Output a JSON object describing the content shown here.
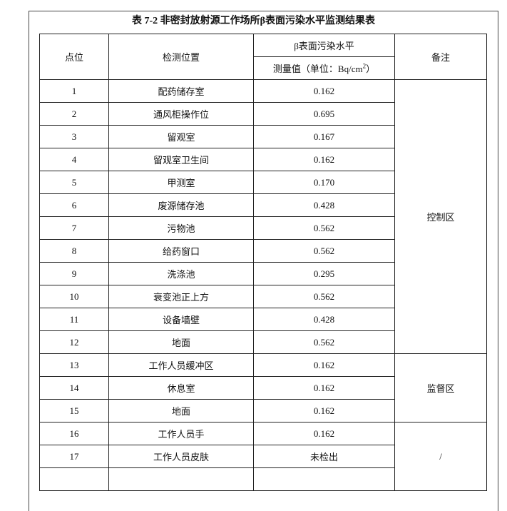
{
  "title": "表 7-2 非密封放射源工作场所β表面污染水平监测结果表",
  "headers": {
    "point": "点位",
    "location": "检测位置",
    "level": "β表面污染水平",
    "measured": "测量值（单位：Bq/cm",
    "measured_sup": "2",
    "measured_end": "）",
    "remark": "备注"
  },
  "rows": [
    {
      "no": "1",
      "location": "配药储存室",
      "value": "0.162"
    },
    {
      "no": "2",
      "location": "通风柜操作位",
      "value": "0.695"
    },
    {
      "no": "3",
      "location": "留观室",
      "value": "0.167"
    },
    {
      "no": "4",
      "location": "留观室卫生间",
      "value": "0.162"
    },
    {
      "no": "5",
      "location": "甲测室",
      "value": "0.170"
    },
    {
      "no": "6",
      "location": "废源储存池",
      "value": "0.428"
    },
    {
      "no": "7",
      "location": "污物池",
      "value": "0.562"
    },
    {
      "no": "8",
      "location": "给药窗口",
      "value": "0.562"
    },
    {
      "no": "9",
      "location": "洗涤池",
      "value": "0.295"
    },
    {
      "no": "10",
      "location": "衰变池正上方",
      "value": "0.562"
    },
    {
      "no": "11",
      "location": "设备墙壁",
      "value": "0.428"
    },
    {
      "no": "12",
      "location": "地面",
      "value": "0.562"
    },
    {
      "no": "13",
      "location": "工作人员缓冲区",
      "value": "0.162"
    },
    {
      "no": "14",
      "location": "休息室",
      "value": "0.162"
    },
    {
      "no": "15",
      "location": "地面",
      "value": "0.162"
    },
    {
      "no": "16",
      "location": "工作人员手",
      "value": "0.162"
    },
    {
      "no": "17",
      "location": "工作人员皮肤",
      "value": "未检出"
    }
  ],
  "remarks": {
    "control": "控制区",
    "supervised": "监督区",
    "other": "/"
  }
}
